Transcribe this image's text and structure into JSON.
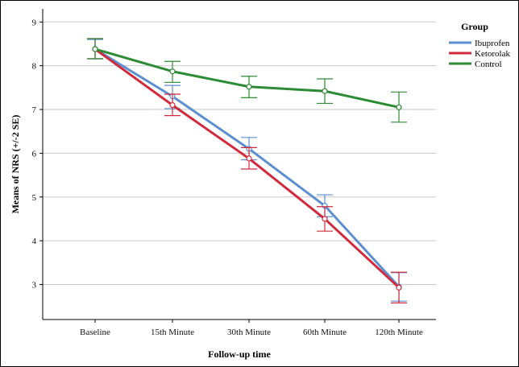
{
  "chart_data": {
    "type": "line",
    "categories": [
      "Baseline",
      "15th Minute",
      "30th Minute",
      "60th Minute",
      "120th Minute"
    ],
    "xlabel": "Follow-up time",
    "ylabel": "Means of NRS (+/-2 SE)",
    "ylim": [
      2.2,
      9.3
    ],
    "yticks": [
      3,
      4,
      5,
      6,
      7,
      8,
      9
    ],
    "grid": "horizontal",
    "legend": {
      "title": "Group",
      "position": "top-right"
    },
    "series": [
      {
        "name": "Ibuprofen",
        "color": "#5b8fd0",
        "values": [
          8.38,
          7.3,
          6.1,
          4.8,
          2.95
        ],
        "err_low": [
          8.16,
          7.02,
          5.85,
          4.55,
          2.62
        ],
        "err_high": [
          8.6,
          7.55,
          6.36,
          5.05,
          3.27
        ]
      },
      {
        "name": "Ketorolak",
        "color": "#d12a3c",
        "values": [
          8.38,
          7.1,
          5.88,
          4.5,
          2.93
        ],
        "err_low": [
          8.16,
          6.86,
          5.64,
          4.22,
          2.58
        ],
        "err_high": [
          8.62,
          7.35,
          6.13,
          4.78,
          3.28
        ]
      },
      {
        "name": "Control",
        "color": "#2e8b35",
        "values": [
          8.38,
          7.87,
          7.52,
          7.42,
          7.05
        ],
        "err_low": [
          8.16,
          7.62,
          7.27,
          7.14,
          6.71
        ],
        "err_high": [
          8.62,
          8.1,
          7.76,
          7.7,
          7.4
        ]
      }
    ]
  }
}
